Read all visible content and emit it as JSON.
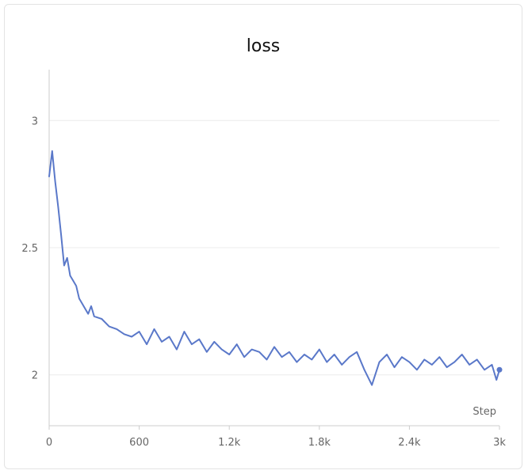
{
  "chart_data": {
    "type": "line",
    "title": "loss",
    "xlabel": "Step",
    "ylabel": "",
    "xlim": [
      0,
      3000
    ],
    "ylim": [
      1.8,
      3.2
    ],
    "grid": true,
    "x_ticks": [
      {
        "value": 0,
        "label": "0"
      },
      {
        "value": 600,
        "label": "600"
      },
      {
        "value": 1200,
        "label": "1.2k"
      },
      {
        "value": 1800,
        "label": "1.8k"
      },
      {
        "value": 2400,
        "label": "2.4k"
      },
      {
        "value": 3000,
        "label": "3k"
      }
    ],
    "y_ticks": [
      {
        "value": 2,
        "label": "2"
      },
      {
        "value": 2.5,
        "label": "2.5"
      },
      {
        "value": 3,
        "label": "3"
      }
    ],
    "series": [
      {
        "color": "#5a78c9",
        "x": [
          0,
          20,
          40,
          60,
          80,
          100,
          120,
          140,
          160,
          180,
          200,
          220,
          240,
          260,
          280,
          300,
          350,
          400,
          450,
          500,
          550,
          600,
          650,
          700,
          750,
          800,
          850,
          900,
          950,
          1000,
          1050,
          1100,
          1150,
          1200,
          1250,
          1300,
          1350,
          1400,
          1450,
          1500,
          1550,
          1600,
          1650,
          1700,
          1750,
          1800,
          1850,
          1900,
          1950,
          2000,
          2050,
          2100,
          2150,
          2200,
          2250,
          2300,
          2350,
          2400,
          2450,
          2500,
          2550,
          2600,
          2650,
          2700,
          2750,
          2800,
          2850,
          2900,
          2950,
          2980,
          3000
        ],
        "y": [
          2.78,
          2.88,
          2.76,
          2.66,
          2.55,
          2.43,
          2.46,
          2.39,
          2.37,
          2.35,
          2.3,
          2.28,
          2.26,
          2.24,
          2.27,
          2.23,
          2.22,
          2.19,
          2.18,
          2.16,
          2.15,
          2.17,
          2.12,
          2.18,
          2.13,
          2.15,
          2.1,
          2.17,
          2.12,
          2.14,
          2.09,
          2.13,
          2.1,
          2.08,
          2.12,
          2.07,
          2.1,
          2.09,
          2.06,
          2.11,
          2.07,
          2.09,
          2.05,
          2.08,
          2.06,
          2.1,
          2.05,
          2.08,
          2.04,
          2.07,
          2.09,
          2.02,
          1.96,
          2.05,
          2.08,
          2.03,
          2.07,
          2.05,
          2.02,
          2.06,
          2.04,
          2.07,
          2.03,
          2.05,
          2.08,
          2.04,
          2.06,
          2.02,
          2.04,
          1.98,
          2.02
        ]
      }
    ]
  }
}
